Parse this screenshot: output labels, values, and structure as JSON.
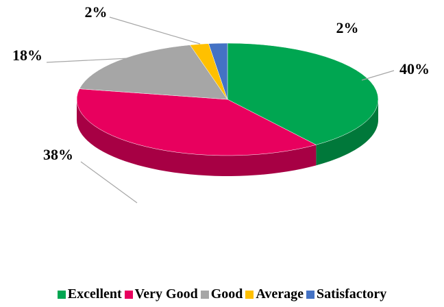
{
  "chart_data": {
    "type": "pie",
    "categories": [
      "Excellent",
      "Very Good",
      "Good",
      "Average",
      "Satisfactory"
    ],
    "values": [
      40,
      38,
      18,
      2,
      2
    ],
    "value_labels": [
      "40%",
      "38%",
      "18%",
      "2%",
      "2%"
    ],
    "colors": [
      "#00a651",
      "#e8005e",
      "#a6a6a6",
      "#ffc000",
      "#4472c4"
    ],
    "legend": "bottom"
  }
}
